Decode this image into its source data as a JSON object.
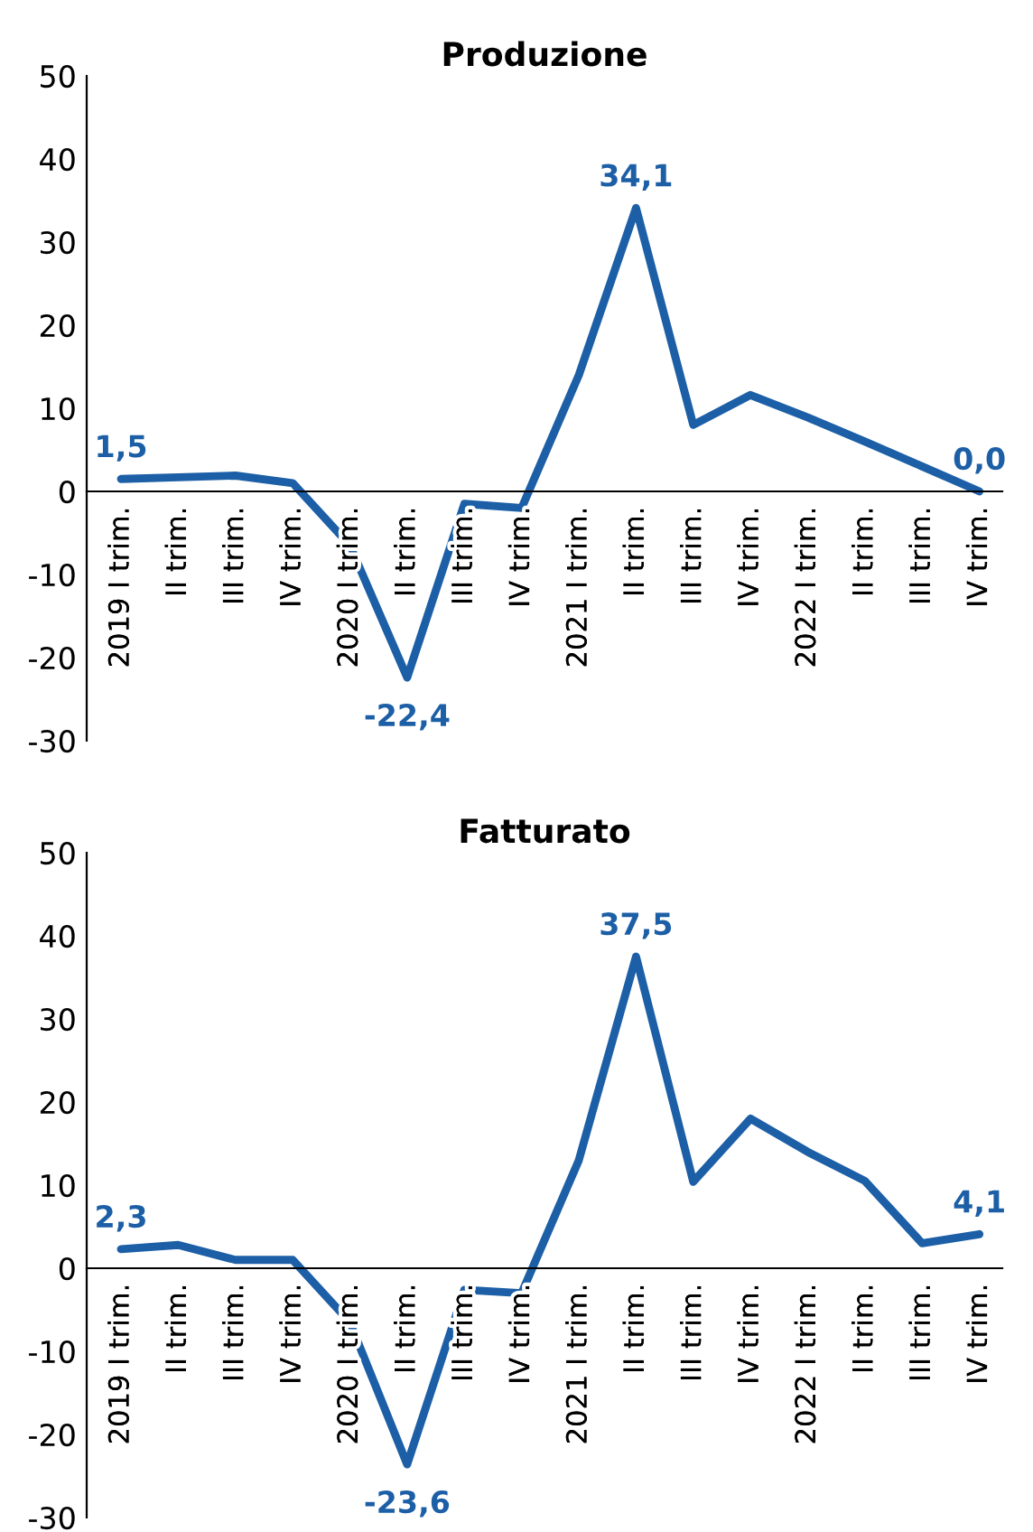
{
  "chart_data": [
    {
      "type": "line",
      "title": "Produzione",
      "categories": [
        "2019 I trim.",
        "II trim.",
        "III trim.",
        "IV trim.",
        "2020 I trim.",
        "II trim.",
        "III trim.",
        "IV trim.",
        "2021 I trim.",
        "II trim.",
        "III trim.",
        "IV trim.",
        "2022 I trim.",
        "II trim.",
        "III trim.",
        "IV trim."
      ],
      "series": [
        {
          "color": "#1c5fa6",
          "values": [
            1.5,
            1.7,
            1.9,
            1.0,
            -6.5,
            -22.4,
            -1.5,
            -2.0,
            14.0,
            34.1,
            8.0,
            11.6,
            8.9,
            6.0,
            3.0,
            0.0
          ],
          "value_labels": [
            "1,5",
            null,
            null,
            null,
            null,
            "-22,4",
            null,
            null,
            null,
            "34,1",
            null,
            null,
            null,
            null,
            null,
            "0,0"
          ]
        }
      ],
      "ylim": [
        -30,
        50
      ],
      "yticks": [
        -30,
        -20,
        -10,
        0,
        10,
        20,
        30,
        40,
        50
      ],
      "grid": false,
      "legend": false,
      "marker": "none",
      "line_style": "solid"
    },
    {
      "type": "line",
      "title": "Fatturato",
      "categories": [
        "2019 I trim.",
        "II trim.",
        "III trim.",
        "IV trim.",
        "2020 I trim.",
        "II trim.",
        "III trim.",
        "IV trim.",
        "2021 I trim.",
        "II trim.",
        "III trim.",
        "IV trim.",
        "2022 I trim.",
        "II trim.",
        "III trim.",
        "IV trim."
      ],
      "series": [
        {
          "color": "#1c5fa6",
          "values": [
            2.3,
            2.8,
            1.0,
            1.0,
            -6.5,
            -23.6,
            -2.6,
            -3.0,
            13.0,
            37.5,
            10.4,
            18.0,
            14.0,
            10.5,
            3.0,
            4.1
          ],
          "value_labels": [
            "2,3",
            null,
            null,
            null,
            null,
            "-23,6",
            null,
            null,
            null,
            "37,5",
            null,
            null,
            null,
            null,
            null,
            "4,1"
          ]
        }
      ],
      "ylim": [
        -30,
        50
      ],
      "yticks": [
        -30,
        -20,
        -10,
        0,
        10,
        20,
        30,
        40,
        50
      ],
      "grid": false,
      "legend": false,
      "marker": "none",
      "line_style": "solid"
    }
  ]
}
